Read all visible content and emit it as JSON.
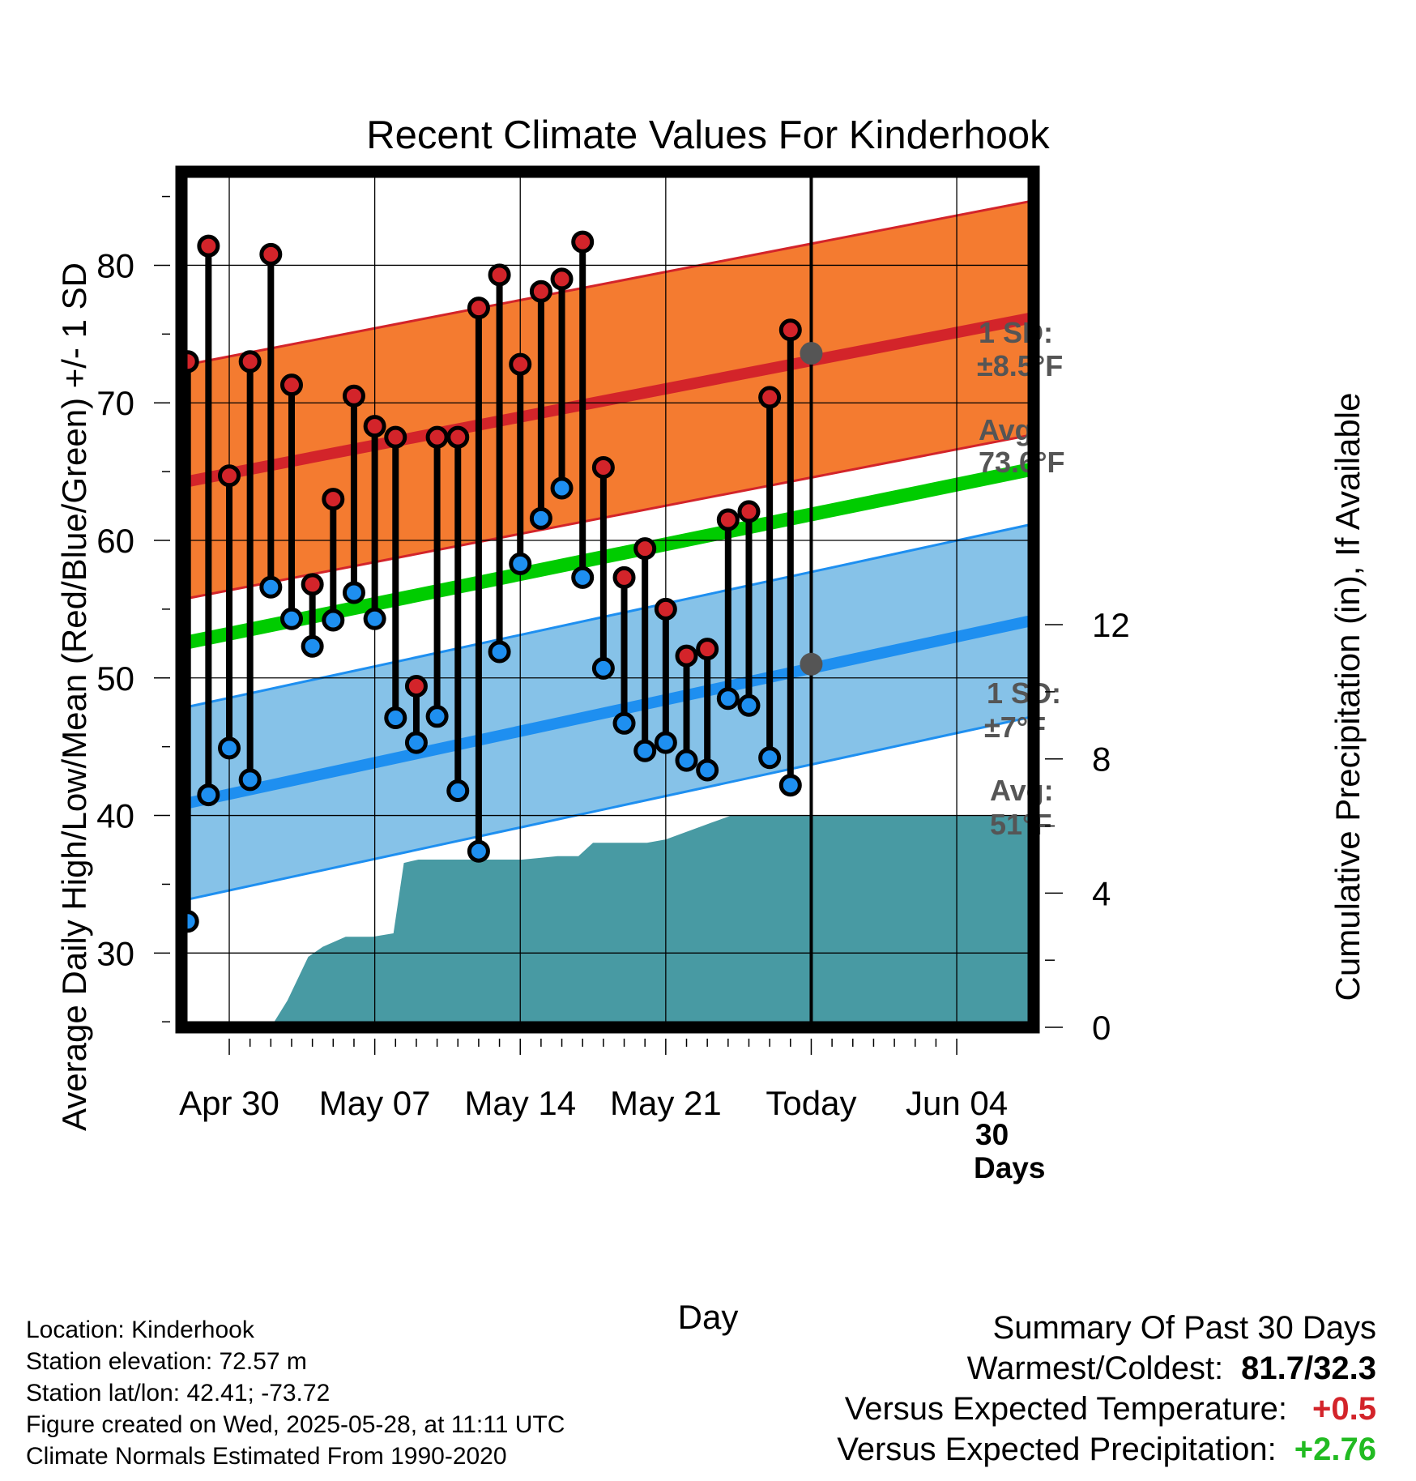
{
  "chart_data": {
    "type": "line",
    "title": "Recent Climate Values For Kinderhook",
    "xlabel": "Day",
    "ylabel": "Average Daily High/Low/Mean (Red/Blue/Green) +/- 1 SD",
    "y2label": "Cumulative Precipitation (in), If Available",
    "x_ticks": [
      "Apr 30",
      "May 07",
      "May 14",
      "May 21",
      "Today",
      "Jun 04"
    ],
    "x_tick_days": [
      3,
      10,
      17,
      24,
      31,
      38
    ],
    "x_range_days": [
      0.7,
      41.7
    ],
    "y_ticks": [
      30,
      40,
      50,
      60,
      70,
      80
    ],
    "ylim": [
      24.6,
      86.8
    ],
    "y2_ticks": [
      0,
      4,
      8,
      12
    ],
    "y2lim": [
      0,
      25.5
    ],
    "grid": true,
    "today_day": 31,
    "today_label": [
      "30",
      "Days"
    ],
    "normals": {
      "high": {
        "start": 64.2,
        "end": 76.2,
        "sd_label": [
          "1 SD:",
          "±8.5°F"
        ],
        "avg_label": [
          "Avg:",
          "73.6°F"
        ],
        "today_value": 73.6,
        "sd": 8.5
      },
      "low": {
        "start": 40.8,
        "end": 54.2,
        "sd_label": [
          "1 SD:",
          "±7°F"
        ],
        "avg_label": [
          "Avg:",
          "51°F"
        ],
        "today_value": 51.0,
        "sd": 7.0
      },
      "mean": {
        "start": 52.5,
        "end": 65.2
      }
    },
    "days": [
      1,
      2,
      3,
      4,
      5,
      6,
      7,
      8,
      9,
      10,
      11,
      12,
      13,
      14,
      15,
      16,
      17,
      18,
      19,
      20,
      21,
      22,
      23,
      24,
      25,
      26,
      27,
      28,
      29,
      30
    ],
    "highs": [
      73.0,
      81.4,
      64.7,
      73.0,
      80.8,
      71.3,
      56.8,
      63.0,
      70.5,
      68.3,
      67.5,
      49.4,
      67.5,
      67.5,
      76.9,
      79.3,
      72.8,
      78.1,
      79.0,
      81.7,
      65.3,
      57.3,
      59.4,
      55.0,
      51.6,
      52.1,
      61.5,
      62.1,
      70.4,
      75.3
    ],
    "lows": [
      32.3,
      41.5,
      44.9,
      42.6,
      56.6,
      54.3,
      52.3,
      54.2,
      56.2,
      54.3,
      47.1,
      45.3,
      47.2,
      41.8,
      37.4,
      51.9,
      58.3,
      61.6,
      63.8,
      57.3,
      50.7,
      46.7,
      44.7,
      45.3,
      44.0,
      43.3,
      48.5,
      48.0,
      44.2,
      42.2
    ],
    "precip": {
      "x": [
        5.0,
        5.8,
        6.8,
        7.5,
        8.6,
        9.0,
        9.9,
        10.9,
        11.4,
        12.1,
        16.0,
        17.1,
        18.8,
        19.8,
        20.5,
        23.1,
        24.0,
        26.2,
        27.1,
        27.9,
        41.7
      ],
      "y": [
        0,
        0.8,
        2.1,
        2.4,
        2.7,
        2.7,
        2.7,
        2.8,
        4.9,
        5.0,
        5.0,
        5.0,
        5.1,
        5.1,
        5.5,
        5.5,
        5.6,
        6.1,
        6.3,
        6.3,
        6.3
      ]
    },
    "colors": {
      "high_band": "#f47b30",
      "high_line": "#d3242a",
      "low_band": "#86c2e8",
      "low_line": "#1e8ff0",
      "mean_line": "#00cc00",
      "precip_fill": "#489aa3",
      "high_dot": "#d3242a",
      "low_dot": "#1e8ff0",
      "avg_marker": "#555555"
    }
  },
  "footer": {
    "location": "Location: Kinderhook",
    "elevation": "Station elevation: 72.57 m",
    "latlon": "Station lat/lon: 42.41; -73.72",
    "created": "Figure created on Wed, 2025-05-28, at 11:11 UTC",
    "normals": "Climate Normals Estimated From 1990-2020"
  },
  "summary": {
    "heading": "Summary Of Past 30 Days",
    "warmest_label": "Warmest/Coldest:",
    "warmest_value": "81.7/32.3",
    "temp_label": "Versus Expected Temperature:",
    "temp_value": "+0.5",
    "temp_color": "#d3242a",
    "precip_label": "Versus Expected Precipitation:",
    "precip_value": "+2.76",
    "precip_color": "#22bb22"
  }
}
